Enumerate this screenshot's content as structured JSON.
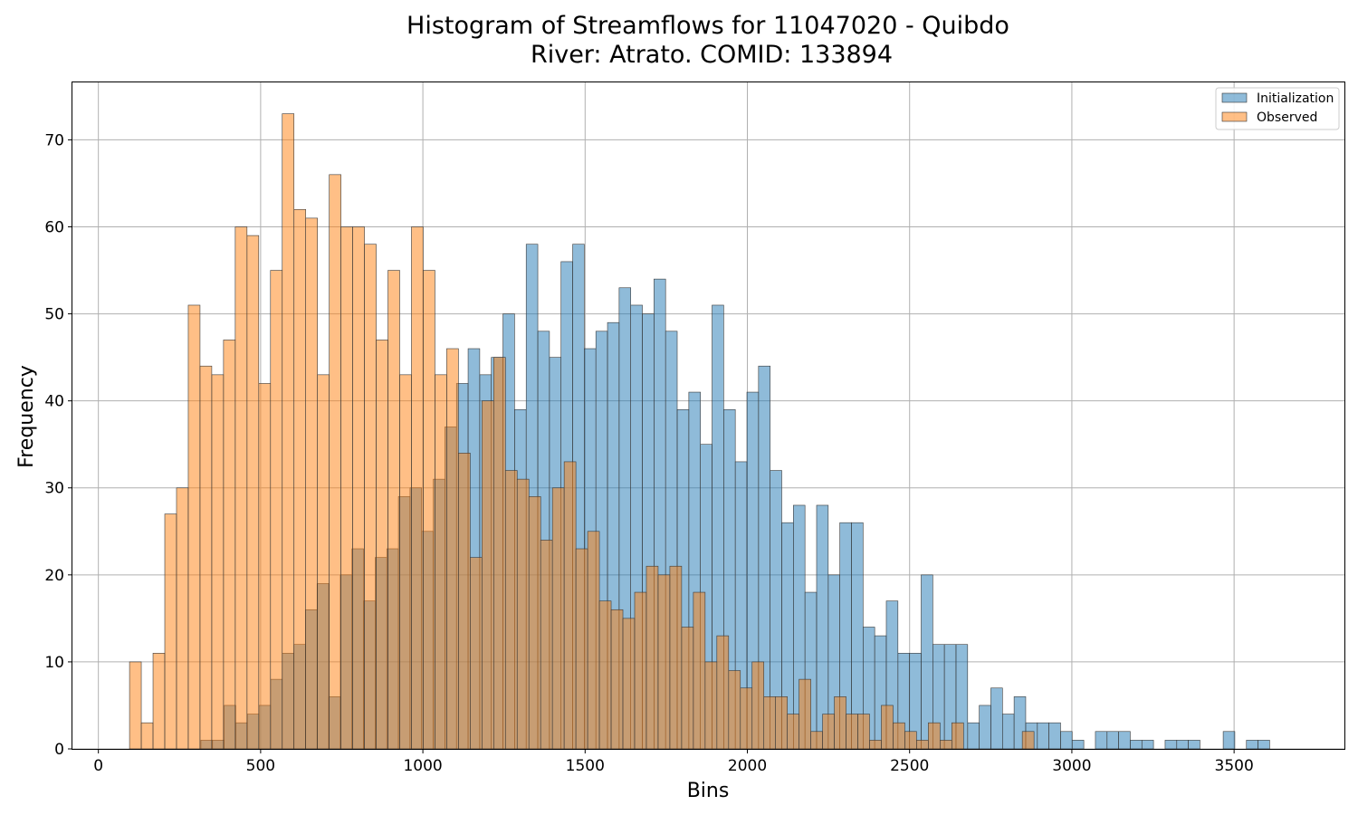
{
  "chart_data": {
    "type": "bar",
    "title_line1": "Histogram of Streamflows for 11047020 - Quibdo",
    "title_line2": "River: Atrato. COMID: 133894",
    "xlabel": "Bins",
    "ylabel": "Frequency",
    "xlim": [
      -80,
      3840
    ],
    "ylim": [
      0,
      76.6
    ],
    "x_ticks": [
      0,
      500,
      1000,
      1500,
      2000,
      2500,
      3000,
      3500
    ],
    "y_ticks": [
      0,
      10,
      20,
      30,
      40,
      50,
      60,
      70
    ],
    "grid": true,
    "legend_position": "top-right",
    "series": [
      {
        "name": "Initialization",
        "color": "#1f77b4",
        "bin_start": 316,
        "bin_width": 35.8,
        "values": [
          1,
          1,
          5,
          3,
          4,
          5,
          8,
          11,
          12,
          16,
          19,
          6,
          20,
          23,
          17,
          22,
          23,
          29,
          30,
          25,
          31,
          37,
          42,
          46,
          43,
          45,
          50,
          39,
          58,
          48,
          45,
          56,
          58,
          46,
          48,
          49,
          53,
          51,
          50,
          54,
          48,
          39,
          41,
          35,
          51,
          39,
          33,
          41,
          44,
          32,
          26,
          28,
          18,
          28,
          20,
          26,
          26,
          14,
          13,
          17,
          11,
          11,
          20,
          12,
          12,
          12,
          3,
          5,
          7,
          4,
          6,
          3,
          3,
          3,
          2,
          1,
          0,
          2,
          2,
          2,
          1,
          1,
          0,
          1,
          1,
          1,
          0,
          0,
          2,
          0,
          1,
          1
        ]
      },
      {
        "name": "Observed",
        "color": "#ff7f0e",
        "bin_start": 96,
        "bin_width": 36.2,
        "values": [
          10,
          3,
          11,
          27,
          30,
          51,
          44,
          43,
          47,
          60,
          59,
          42,
          55,
          73,
          62,
          61,
          43,
          66,
          60,
          60,
          58,
          47,
          55,
          43,
          60,
          55,
          43,
          46,
          34,
          22,
          40,
          45,
          32,
          31,
          29,
          24,
          30,
          33,
          23,
          25,
          17,
          16,
          15,
          18,
          21,
          20,
          21,
          14,
          18,
          10,
          13,
          9,
          7,
          10,
          6,
          6,
          4,
          8,
          2,
          4,
          6,
          4,
          4,
          1,
          5,
          3,
          2,
          1,
          3,
          1,
          3,
          0,
          0,
          0,
          0,
          0,
          2
        ]
      }
    ]
  }
}
